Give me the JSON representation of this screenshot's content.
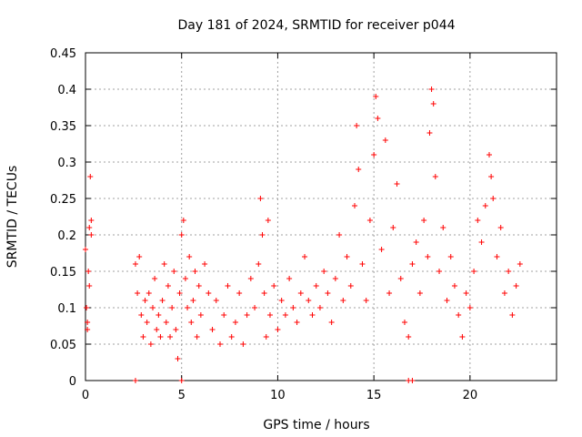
{
  "chart_data": {
    "type": "scatter",
    "title": "Day 181 of 2024, SRMTID for receiver p044",
    "xlabel": "GPS time / hours",
    "ylabel": "SRMTID / TECUs",
    "xlim": [
      0,
      24.5
    ],
    "ylim": [
      0,
      0.45
    ],
    "xticks": [
      0,
      5,
      10,
      15,
      20
    ],
    "xtick_labels": [
      "0",
      "5",
      "10",
      "15",
      "20"
    ],
    "yticks": [
      0,
      0.05,
      0.1,
      0.15,
      0.2,
      0.25,
      0.3,
      0.35,
      0.4,
      0.45
    ],
    "ytick_labels": [
      "0",
      "0.05",
      "0.1",
      "0.15",
      "0.2",
      "0.25",
      "0.3",
      "0.35",
      "0.4",
      "0.45"
    ],
    "grid": true,
    "marker": "+",
    "color": "#ff0000",
    "series": [
      {
        "name": "SRMTID",
        "x": [
          0.0,
          0.05,
          0.1,
          0.15,
          0.2,
          0.25,
          0.3,
          0.1,
          0.2,
          0.3,
          2.6,
          2.7,
          2.8,
          2.9,
          3.0,
          3.1,
          3.2,
          3.3,
          3.4,
          3.5,
          3.6,
          3.7,
          3.8,
          3.9,
          4.0,
          4.1,
          4.2,
          4.3,
          4.4,
          4.5,
          4.6,
          4.7,
          4.8,
          4.9,
          5.0,
          5.1,
          5.2,
          5.3,
          5.4,
          5.5,
          5.6,
          5.7,
          5.8,
          5.9,
          6.0,
          6.2,
          6.4,
          6.6,
          6.8,
          7.0,
          7.2,
          7.4,
          7.6,
          7.8,
          8.0,
          8.2,
          8.4,
          8.6,
          8.8,
          9.0,
          9.1,
          9.2,
          9.3,
          9.4,
          9.5,
          9.6,
          9.8,
          10.0,
          10.2,
          10.4,
          10.6,
          10.8,
          11.0,
          11.2,
          11.4,
          11.6,
          11.8,
          12.0,
          12.2,
          12.4,
          12.6,
          12.8,
          13.0,
          13.2,
          13.4,
          13.6,
          13.8,
          14.0,
          14.1,
          14.2,
          14.4,
          14.6,
          14.8,
          15.0,
          15.1,
          15.2,
          15.4,
          15.6,
          15.8,
          16.0,
          16.2,
          16.4,
          16.6,
          16.8,
          17.0,
          17.2,
          17.4,
          17.6,
          17.8,
          17.9,
          18.0,
          18.1,
          18.2,
          18.4,
          18.6,
          18.8,
          19.0,
          19.2,
          19.4,
          19.6,
          19.8,
          20.0,
          20.2,
          20.4,
          20.6,
          20.8,
          21.0,
          21.1,
          21.2,
          21.4,
          21.6,
          21.8,
          22.0,
          22.2,
          22.4,
          22.6,
          2.6,
          5.0,
          16.8,
          17.0
        ],
        "y": [
          0.18,
          0.1,
          0.08,
          0.15,
          0.21,
          0.28,
          0.2,
          0.07,
          0.13,
          0.22,
          0.16,
          0.12,
          0.17,
          0.09,
          0.06,
          0.11,
          0.08,
          0.12,
          0.05,
          0.1,
          0.14,
          0.07,
          0.09,
          0.06,
          0.11,
          0.16,
          0.08,
          0.13,
          0.06,
          0.1,
          0.15,
          0.07,
          0.03,
          0.12,
          0.2,
          0.22,
          0.14,
          0.1,
          0.17,
          0.08,
          0.11,
          0.15,
          0.06,
          0.13,
          0.09,
          0.16,
          0.12,
          0.07,
          0.11,
          0.05,
          0.09,
          0.13,
          0.06,
          0.08,
          0.12,
          0.05,
          0.09,
          0.14,
          0.1,
          0.16,
          0.25,
          0.2,
          0.12,
          0.06,
          0.22,
          0.09,
          0.13,
          0.07,
          0.11,
          0.09,
          0.14,
          0.1,
          0.08,
          0.12,
          0.17,
          0.11,
          0.09,
          0.13,
          0.1,
          0.15,
          0.12,
          0.08,
          0.14,
          0.2,
          0.11,
          0.17,
          0.13,
          0.24,
          0.35,
          0.29,
          0.16,
          0.11,
          0.22,
          0.31,
          0.39,
          0.36,
          0.18,
          0.33,
          0.12,
          0.21,
          0.27,
          0.14,
          0.08,
          0.06,
          0.16,
          0.19,
          0.12,
          0.22,
          0.17,
          0.34,
          0.4,
          0.38,
          0.28,
          0.15,
          0.21,
          0.11,
          0.17,
          0.13,
          0.09,
          0.06,
          0.12,
          0.1,
          0.15,
          0.22,
          0.19,
          0.24,
          0.31,
          0.28,
          0.25,
          0.17,
          0.21,
          0.12,
          0.15,
          0.09,
          0.13,
          0.16,
          0.0,
          0.0,
          0.0,
          0.0
        ]
      }
    ]
  }
}
